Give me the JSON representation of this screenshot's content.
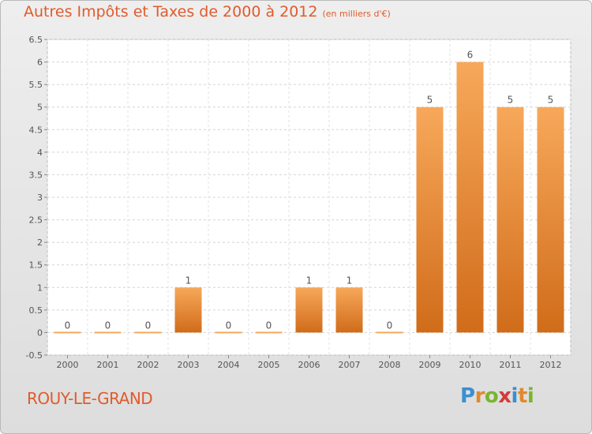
{
  "header": {
    "title": "Autres Impôts et Taxes de 2000 à 2012",
    "subtitle": "(en milliers d'€)"
  },
  "footer": {
    "place": "ROUY-LE-GRAND",
    "logo": "Proxiti"
  },
  "colors": {
    "accent": "#e05b2c",
    "bar_light": "#f7a85a",
    "bar_dark": "#d06c1a"
  },
  "chart_data": {
    "type": "bar",
    "categories": [
      "2000",
      "2001",
      "2002",
      "2003",
      "2004",
      "2005",
      "2006",
      "2007",
      "2008",
      "2009",
      "2010",
      "2011",
      "2012"
    ],
    "values": [
      0,
      0,
      0,
      1,
      0,
      0,
      1,
      1,
      0,
      5,
      6,
      5,
      5
    ],
    "data_labels": [
      "0",
      "0",
      "0",
      "1",
      "0",
      "0",
      "1",
      "1",
      "0",
      "5",
      "6",
      "5",
      "5"
    ],
    "yticks": [
      "-0.5",
      "0",
      "0.5",
      "1",
      "1.5",
      "2",
      "2.5",
      "3",
      "3.5",
      "4",
      "4.5",
      "5",
      "5.5",
      "6",
      "6.5"
    ],
    "ylim": [
      -0.5,
      6.5
    ],
    "grid": true,
    "legend": "none"
  }
}
